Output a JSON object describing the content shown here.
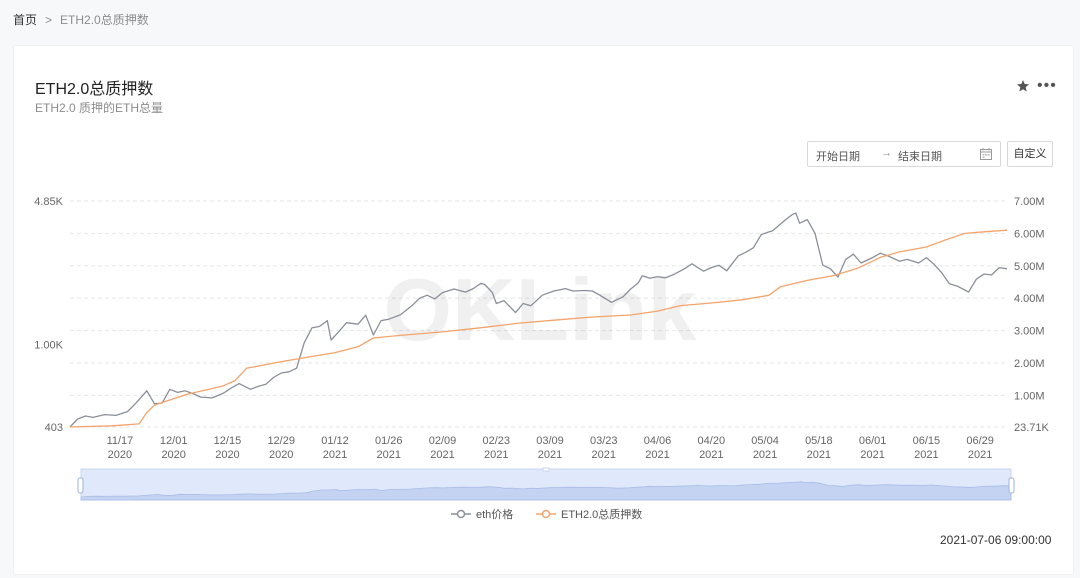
{
  "breadcrumb": {
    "home": "首页",
    "separator": ">",
    "current": "ETH2.0总质押数"
  },
  "card": {
    "title": "ETH2.0总质押数",
    "subtitle": "ETH2.0 质押的ETH总量",
    "star_icon": "star-icon",
    "more_icon": "ellipsis-icon",
    "date_start_placeholder": "开始日期",
    "date_arrow": "→",
    "date_end_placeholder": "结束日期",
    "calendar_icon": "calendar-icon",
    "custom_button": "自定义",
    "timestamp": "2021-07-06 09:00:00",
    "watermark": "OKLink"
  },
  "colors": {
    "eth_price": "#8a8f99",
    "staked": "#f5a36b",
    "grid": "#e6e6e6",
    "slider": "#dfe9fb"
  },
  "chart_data": {
    "type": "line",
    "legend_position": "bottom",
    "grid": true,
    "x_ticks": [
      "11/17\n2020",
      "12/01\n2020",
      "12/15\n2020",
      "12/29\n2020",
      "01/12\n2021",
      "01/26\n2021",
      "02/09\n2021",
      "02/23\n2021",
      "03/09\n2021",
      "03/23\n2021",
      "04/06\n2021",
      "04/20\n2021",
      "05/04\n2021",
      "05/18\n2021",
      "06/01\n2021",
      "06/15\n2021",
      "06/29\n2021"
    ],
    "x_range": [
      "2020-11-04",
      "2021-07-06"
    ],
    "y_left": {
      "ticks": [
        "403",
        "1.00K",
        "4.85K"
      ],
      "tick_values": [
        403,
        1000,
        4850
      ],
      "scale": "log"
    },
    "y_right": {
      "ticks": [
        "23.71K",
        "1.00M",
        "2.00M",
        "3.00M",
        "4.00M",
        "5.00M",
        "6.00M",
        "7.00M"
      ],
      "tick_values": [
        23710,
        1000000,
        2000000,
        3000000,
        4000000,
        5000000,
        6000000,
        7000000
      ],
      "range": [
        23710,
        7000000
      ]
    },
    "series": [
      {
        "name": "eth价格",
        "axis": "left",
        "color": "#8a8f99",
        "points": [
          [
            "2020-11-04",
            403
          ],
          [
            "2020-11-06",
            440
          ],
          [
            "2020-11-08",
            455
          ],
          [
            "2020-11-10",
            448
          ],
          [
            "2020-11-13",
            462
          ],
          [
            "2020-11-16",
            458
          ],
          [
            "2020-11-19",
            478
          ],
          [
            "2020-11-21",
            520
          ],
          [
            "2020-11-24",
            600
          ],
          [
            "2020-11-26",
            520
          ],
          [
            "2020-11-28",
            525
          ],
          [
            "2020-11-30",
            610
          ],
          [
            "2020-12-02",
            590
          ],
          [
            "2020-12-04",
            600
          ],
          [
            "2020-12-06",
            582
          ],
          [
            "2020-12-08",
            560
          ],
          [
            "2020-12-11",
            555
          ],
          [
            "2020-12-14",
            585
          ],
          [
            "2020-12-16",
            620
          ],
          [
            "2020-12-18",
            650
          ],
          [
            "2020-12-21",
            610
          ],
          [
            "2020-12-23",
            630
          ],
          [
            "2020-12-25",
            645
          ],
          [
            "2020-12-27",
            695
          ],
          [
            "2020-12-29",
            730
          ],
          [
            "2020-12-31",
            740
          ],
          [
            "2021-01-02",
            770
          ],
          [
            "2021-01-04",
            1020
          ],
          [
            "2021-01-06",
            1200
          ],
          [
            "2021-01-08",
            1220
          ],
          [
            "2021-01-10",
            1300
          ],
          [
            "2021-01-11",
            1050
          ],
          [
            "2021-01-13",
            1150
          ],
          [
            "2021-01-15",
            1270
          ],
          [
            "2021-01-18",
            1250
          ],
          [
            "2021-01-20",
            1380
          ],
          [
            "2021-01-22",
            1110
          ],
          [
            "2021-01-24",
            1300
          ],
          [
            "2021-01-26",
            1320
          ],
          [
            "2021-01-29",
            1385
          ],
          [
            "2021-02-01",
            1530
          ],
          [
            "2021-02-03",
            1660
          ],
          [
            "2021-02-05",
            1720
          ],
          [
            "2021-02-07",
            1650
          ],
          [
            "2021-02-09",
            1770
          ],
          [
            "2021-02-12",
            1840
          ],
          [
            "2021-02-15",
            1780
          ],
          [
            "2021-02-17",
            1850
          ],
          [
            "2021-02-19",
            1960
          ],
          [
            "2021-02-20",
            1935
          ],
          [
            "2021-02-22",
            1770
          ],
          [
            "2021-02-23",
            1570
          ],
          [
            "2021-02-25",
            1620
          ],
          [
            "2021-02-28",
            1420
          ],
          [
            "2021-03-02",
            1570
          ],
          [
            "2021-03-04",
            1530
          ],
          [
            "2021-03-07",
            1720
          ],
          [
            "2021-03-10",
            1800
          ],
          [
            "2021-03-13",
            1850
          ],
          [
            "2021-03-15",
            1800
          ],
          [
            "2021-03-18",
            1810
          ],
          [
            "2021-03-20",
            1800
          ],
          [
            "2021-03-22",
            1720
          ],
          [
            "2021-03-25",
            1590
          ],
          [
            "2021-03-28",
            1690
          ],
          [
            "2021-03-30",
            1840
          ],
          [
            "2021-04-01",
            1970
          ],
          [
            "2021-04-02",
            2130
          ],
          [
            "2021-04-04",
            2070
          ],
          [
            "2021-04-06",
            2110
          ],
          [
            "2021-04-08",
            2080
          ],
          [
            "2021-04-10",
            2150
          ],
          [
            "2021-04-13",
            2300
          ],
          [
            "2021-04-15",
            2430
          ],
          [
            "2021-04-16",
            2360
          ],
          [
            "2021-04-18",
            2240
          ],
          [
            "2021-04-20",
            2330
          ],
          [
            "2021-04-22",
            2390
          ],
          [
            "2021-04-24",
            2250
          ],
          [
            "2021-04-27",
            2650
          ],
          [
            "2021-04-29",
            2760
          ],
          [
            "2021-05-01",
            2900
          ],
          [
            "2021-05-03",
            3350
          ],
          [
            "2021-05-06",
            3500
          ],
          [
            "2021-05-09",
            3900
          ],
          [
            "2021-05-11",
            4170
          ],
          [
            "2021-05-12",
            4250
          ],
          [
            "2021-05-13",
            3800
          ],
          [
            "2021-05-15",
            3950
          ],
          [
            "2021-05-17",
            3400
          ],
          [
            "2021-05-19",
            2400
          ],
          [
            "2021-05-21",
            2300
          ],
          [
            "2021-05-23",
            2100
          ],
          [
            "2021-05-25",
            2550
          ],
          [
            "2021-05-27",
            2700
          ],
          [
            "2021-05-29",
            2450
          ],
          [
            "2021-06-01",
            2600
          ],
          [
            "2021-06-03",
            2730
          ],
          [
            "2021-06-05",
            2650
          ],
          [
            "2021-06-08",
            2500
          ],
          [
            "2021-06-10",
            2550
          ],
          [
            "2021-06-13",
            2450
          ],
          [
            "2021-06-15",
            2600
          ],
          [
            "2021-06-17",
            2420
          ],
          [
            "2021-06-19",
            2200
          ],
          [
            "2021-06-21",
            1950
          ],
          [
            "2021-06-23",
            1900
          ],
          [
            "2021-06-25",
            1820
          ],
          [
            "2021-06-26",
            1780
          ],
          [
            "2021-06-28",
            2050
          ],
          [
            "2021-06-30",
            2170
          ],
          [
            "2021-07-02",
            2150
          ],
          [
            "2021-07-04",
            2330
          ],
          [
            "2021-07-06",
            2300
          ]
        ]
      },
      {
        "name": "ETH2.0总质押数",
        "axis": "right",
        "color": "#f5a36b",
        "points": [
          [
            "2020-11-04",
            23710
          ],
          [
            "2020-11-15",
            60000
          ],
          [
            "2020-11-22",
            120000
          ],
          [
            "2020-11-24",
            470000
          ],
          [
            "2020-11-26",
            700000
          ],
          [
            "2020-12-01",
            900000
          ],
          [
            "2020-12-05",
            1050000
          ],
          [
            "2020-12-10",
            1180000
          ],
          [
            "2020-12-14",
            1300000
          ],
          [
            "2020-12-17",
            1460000
          ],
          [
            "2020-12-20",
            1840000
          ],
          [
            "2020-12-25",
            1950000
          ],
          [
            "2020-12-30",
            2060000
          ],
          [
            "2021-01-05",
            2180000
          ],
          [
            "2021-01-12",
            2320000
          ],
          [
            "2021-01-18",
            2500000
          ],
          [
            "2021-01-22",
            2770000
          ],
          [
            "2021-01-29",
            2850000
          ],
          [
            "2021-02-09",
            2960000
          ],
          [
            "2021-02-20",
            3100000
          ],
          [
            "2021-03-01",
            3230000
          ],
          [
            "2021-03-10",
            3320000
          ],
          [
            "2021-03-20",
            3420000
          ],
          [
            "2021-03-30",
            3480000
          ],
          [
            "2021-04-06",
            3600000
          ],
          [
            "2021-04-12",
            3770000
          ],
          [
            "2021-04-20",
            3850000
          ],
          [
            "2021-04-28",
            3950000
          ],
          [
            "2021-05-05",
            4090000
          ],
          [
            "2021-05-08",
            4350000
          ],
          [
            "2021-05-15",
            4550000
          ],
          [
            "2021-05-22",
            4700000
          ],
          [
            "2021-05-28",
            4920000
          ],
          [
            "2021-06-03",
            5260000
          ],
          [
            "2021-06-08",
            5430000
          ],
          [
            "2021-06-15",
            5580000
          ],
          [
            "2021-06-20",
            5800000
          ],
          [
            "2021-06-25",
            6000000
          ],
          [
            "2021-06-30",
            6050000
          ],
          [
            "2021-07-06",
            6100000
          ]
        ]
      }
    ]
  }
}
